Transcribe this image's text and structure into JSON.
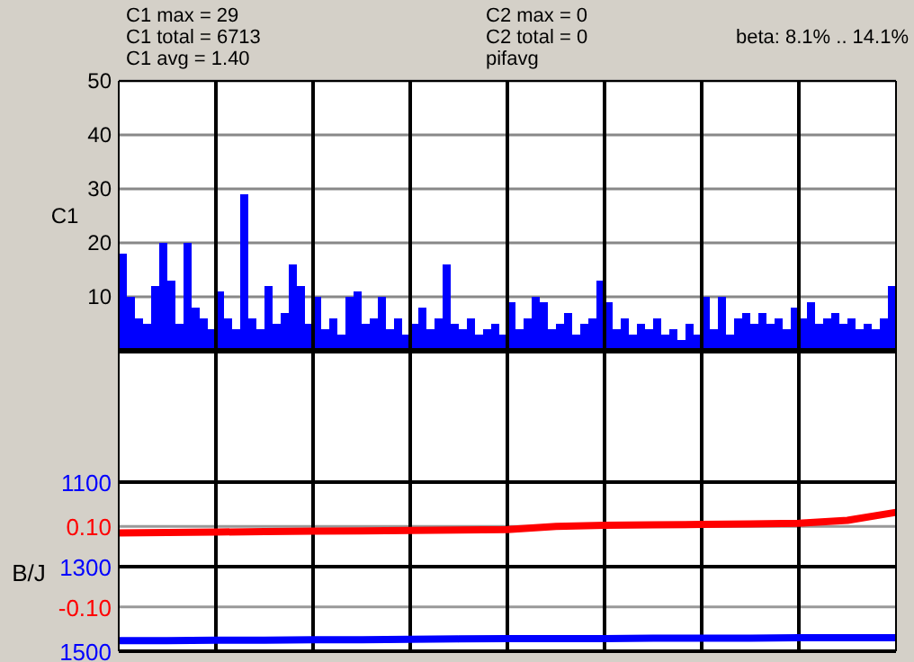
{
  "chart_data": [
    {
      "type": "bar",
      "ylabel": "C1",
      "color": "#0000ff",
      "grid": true,
      "tick_labels": "y",
      "annotations": [
        "C1 max = 29",
        "C1 total = 6713",
        "C1 avg = 1.40",
        "C2 max = 0",
        "C2 total = 0",
        "pifavg",
        "beta: 8.1% .. 14.1%"
      ],
      "categories": [
        null,
        null,
        null,
        null,
        null,
        null,
        null,
        null,
        null,
        null,
        null,
        null,
        null,
        null,
        null,
        null,
        null,
        null,
        null,
        null,
        null,
        null,
        null,
        null,
        null,
        null,
        null,
        null,
        null,
        null,
        null,
        null,
        null,
        null,
        null,
        null,
        null,
        null,
        null,
        null,
        null,
        null,
        null,
        null,
        null,
        null,
        null,
        null,
        null,
        null,
        null,
        null,
        null,
        null,
        null,
        null,
        null,
        null,
        null,
        null,
        null,
        null,
        null,
        null,
        null,
        null,
        null,
        null,
        null,
        null,
        null,
        null,
        null,
        null,
        null,
        null,
        null,
        null,
        null,
        null,
        null,
        null,
        null,
        null,
        null,
        null,
        null,
        null,
        null,
        null,
        null,
        null,
        null,
        null,
        null,
        null
      ],
      "values": [
        18,
        10,
        6,
        5,
        12,
        20,
        13,
        5,
        20,
        8,
        6,
        4,
        11,
        6,
        4,
        29,
        6,
        4,
        12,
        5,
        7,
        16,
        12,
        5,
        10,
        4,
        6,
        3,
        10,
        11,
        5,
        6,
        10,
        4,
        6,
        3,
        5,
        8,
        4,
        6,
        16,
        5,
        4,
        6,
        3,
        4,
        5,
        3,
        9,
        4,
        6,
        10,
        9,
        4,
        5,
        7,
        3,
        5,
        6,
        13,
        9,
        4,
        6,
        3,
        5,
        4,
        6,
        3,
        4,
        2,
        5,
        3,
        10,
        4,
        10,
        3,
        6,
        7,
        5,
        7,
        5,
        6,
        4,
        8,
        6,
        9,
        5,
        6,
        7,
        5,
        6,
        4,
        5,
        4,
        6,
        12
      ],
      "ylim": [
        0,
        50
      ],
      "yticks": [
        10,
        20,
        30,
        40,
        50
      ]
    },
    {
      "type": "line",
      "ylabel": "B/J",
      "grid": true,
      "tick_labels": "y",
      "categories": [
        null,
        null,
        null,
        null,
        null,
        null,
        null,
        null,
        null,
        null,
        null,
        null,
        null,
        null,
        null,
        null,
        null
      ],
      "series": [
        {
          "color": "#ff0000",
          "values": [
            0.084,
            0.085,
            0.086,
            0.087,
            0.088,
            0.089,
            0.09,
            0.091,
            0.092,
            0.1,
            0.103,
            0.104,
            0.105,
            0.106,
            0.108,
            0.115,
            0.135
          ]
        },
        {
          "color": "#0000ff",
          "axis": "y2",
          "values": [
            1475,
            1475,
            1474,
            1474,
            1473,
            1473,
            1472,
            1471,
            1470,
            1470,
            1470,
            1469,
            1469,
            1469,
            1468,
            1468,
            1468
          ]
        }
      ],
      "ylim": [
        -0.21,
        0.21
      ],
      "yticks": [
        {
          "value": 0.1,
          "label": "0.10"
        },
        {
          "value": -0.1,
          "label": "-0.10"
        }
      ],
      "y2lim": [
        1500,
        1100
      ],
      "y2ticks": [
        1100,
        1300,
        1500
      ]
    }
  ]
}
